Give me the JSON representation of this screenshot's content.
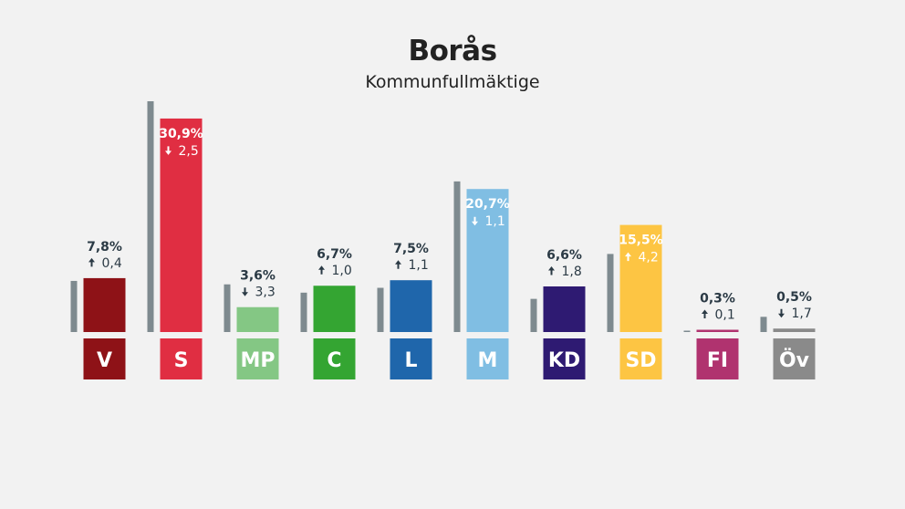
{
  "chart_data": {
    "type": "bar",
    "title": "Borås",
    "subtitle": "Kommunfullmäktige",
    "unit": "%",
    "categories": [
      "V",
      "S",
      "MP",
      "C",
      "L",
      "M",
      "KD",
      "SD",
      "FI",
      "Öv"
    ],
    "series": [
      {
        "values": [
          7.8,
          30.9,
          3.6,
          6.7,
          7.5,
          20.7,
          6.6,
          15.5,
          0.3,
          0.5
        ],
        "labels": [
          "7,8%",
          "30,9%",
          "3,6%",
          "6,7%",
          "7,5%",
          "20,7%",
          "6,6%",
          "15,5%",
          "0,3%",
          "0,5%"
        ]
      },
      {
        "values": [
          7.4,
          33.4,
          6.9,
          5.7,
          6.4,
          21.8,
          4.8,
          11.3,
          0.2,
          2.2
        ]
      }
    ],
    "changes": {
      "values": [
        0.4,
        -2.5,
        -3.3,
        1.0,
        1.1,
        -1.1,
        1.8,
        4.2,
        0.1,
        -1.7
      ],
      "labels": [
        "0,4",
        "2,5",
        "3,3",
        "1,0",
        "1,1",
        "1,1",
        "1,8",
        "4,2",
        "0,1",
        "1,7"
      ],
      "direction": [
        "up",
        "down",
        "down",
        "up",
        "up",
        "down",
        "up",
        "up",
        "up",
        "down"
      ]
    },
    "colors": [
      "#8e1217",
      "#e02e42",
      "#84c784",
      "#34a532",
      "#1f66ab",
      "#80bee3",
      "#2e1a72",
      "#fdc543",
      "#b0336f",
      "#8a8a8a"
    ],
    "previous_color": "#7e8a8f",
    "ylim": [
      0,
      33.4
    ]
  }
}
